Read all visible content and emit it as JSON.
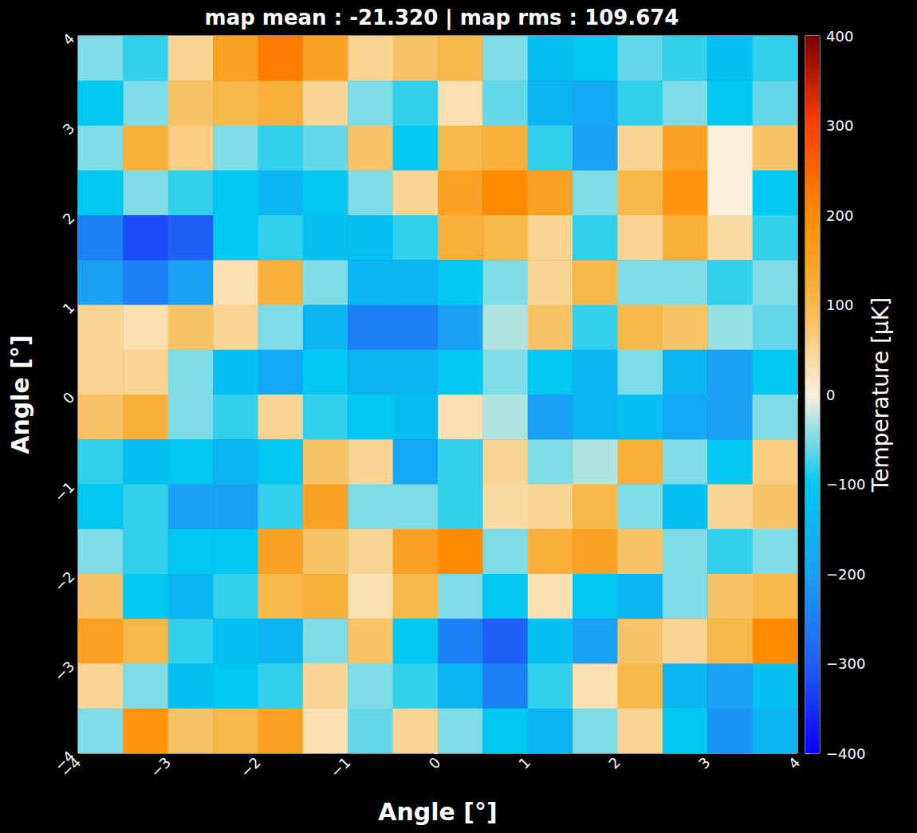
{
  "chart_data": {
    "type": "heatmap",
    "title": "map mean : -21.320 | map rms : 109.674",
    "x_label": "Angle [°]",
    "y_label": "Angle [°]",
    "colorbar_label": "Temperature [μK]",
    "grid": false,
    "x": [
      -3.75,
      -3.25,
      -2.75,
      -2.25,
      -1.75,
      -1.25,
      -0.75,
      -0.25,
      0.25,
      0.75,
      1.25,
      1.75,
      2.25,
      2.75,
      3.25,
      3.75
    ],
    "y": [
      3.75,
      3.25,
      2.75,
      2.25,
      1.75,
      1.25,
      0.75,
      0.25,
      -0.25,
      -0.75,
      -1.25,
      -1.75,
      -2.25,
      -2.75,
      -3.25,
      -3.75
    ],
    "values": [
      [
        -50,
        -80,
        50,
        150,
        220,
        150,
        50,
        80,
        100,
        -50,
        -120,
        -100,
        -60,
        -80,
        -120,
        -80
      ],
      [
        -100,
        -50,
        80,
        100,
        120,
        50,
        -50,
        -80,
        30,
        -60,
        -150,
        -180,
        -80,
        -50,
        -100,
        -60
      ],
      [
        -50,
        120,
        60,
        -50,
        -80,
        -60,
        80,
        -100,
        100,
        120,
        -80,
        -200,
        50,
        150,
        0,
        80
      ],
      [
        -100,
        -50,
        -80,
        -100,
        -150,
        -100,
        -50,
        50,
        150,
        200,
        150,
        -50,
        100,
        180,
        0,
        -100
      ],
      [
        -250,
        -320,
        -300,
        -100,
        -80,
        -120,
        -120,
        -80,
        120,
        100,
        50,
        -80,
        50,
        120,
        40,
        -80
      ],
      [
        -200,
        -250,
        -200,
        30,
        120,
        -50,
        -150,
        -150,
        -100,
        -50,
        50,
        100,
        -50,
        -50,
        -80,
        -50
      ],
      [
        50,
        30,
        80,
        50,
        -50,
        -150,
        -250,
        -250,
        -200,
        -30,
        80,
        -80,
        100,
        80,
        -40,
        -60
      ],
      [
        50,
        50,
        -50,
        -120,
        -180,
        -100,
        -150,
        -150,
        -100,
        -50,
        -100,
        -150,
        -50,
        -150,
        -200,
        -100
      ],
      [
        80,
        120,
        -50,
        -80,
        50,
        -80,
        -100,
        -130,
        30,
        -30,
        -200,
        -150,
        -120,
        -180,
        -200,
        -50
      ],
      [
        -80,
        -120,
        -100,
        -150,
        -100,
        80,
        50,
        -180,
        -80,
        50,
        -50,
        -30,
        120,
        -50,
        -100,
        60
      ],
      [
        -100,
        -80,
        -200,
        -200,
        -80,
        150,
        -50,
        -50,
        -80,
        40,
        50,
        100,
        -50,
        -120,
        50,
        80
      ],
      [
        -50,
        -80,
        -100,
        -100,
        150,
        80,
        50,
        150,
        200,
        -50,
        120,
        150,
        80,
        -50,
        -80,
        -50
      ],
      [
        80,
        -100,
        -150,
        -80,
        100,
        120,
        30,
        100,
        -50,
        -100,
        30,
        -100,
        -150,
        -50,
        80,
        100
      ],
      [
        150,
        100,
        -80,
        -120,
        -150,
        -50,
        80,
        -100,
        -250,
        -300,
        -120,
        -200,
        80,
        50,
        100,
        200
      ],
      [
        50,
        -50,
        -120,
        -100,
        -80,
        50,
        -50,
        -80,
        -150,
        -250,
        -80,
        30,
        100,
        -150,
        -200,
        -120
      ],
      [
        -50,
        180,
        80,
        100,
        150,
        30,
        -60,
        50,
        -50,
        -100,
        -150,
        -50,
        50,
        -100,
        -220,
        -150
      ]
    ],
    "xlim": [
      -4,
      4
    ],
    "ylim": [
      -4,
      4
    ],
    "xticks": [
      {
        "value": -4,
        "label": "−4"
      },
      {
        "value": -3,
        "label": "−3"
      },
      {
        "value": -2,
        "label": "−2"
      },
      {
        "value": -1,
        "label": "−1"
      },
      0,
      1,
      2,
      3,
      4
    ],
    "yticks": [
      {
        "value": -4,
        "label": "−4"
      },
      {
        "value": -3,
        "label": "−3"
      },
      {
        "value": -2,
        "label": "−2"
      },
      {
        "value": -1,
        "label": "−1"
      },
      0,
      1,
      2,
      3,
      4
    ],
    "clim": [
      -400,
      400
    ],
    "cticks": [
      {
        "value": -400,
        "label": "−400"
      },
      {
        "value": -300,
        "label": "−300"
      },
      {
        "value": -200,
        "label": "−200"
      },
      {
        "value": -100,
        "label": "−100"
      },
      0,
      100,
      200,
      300,
      400
    ]
  }
}
